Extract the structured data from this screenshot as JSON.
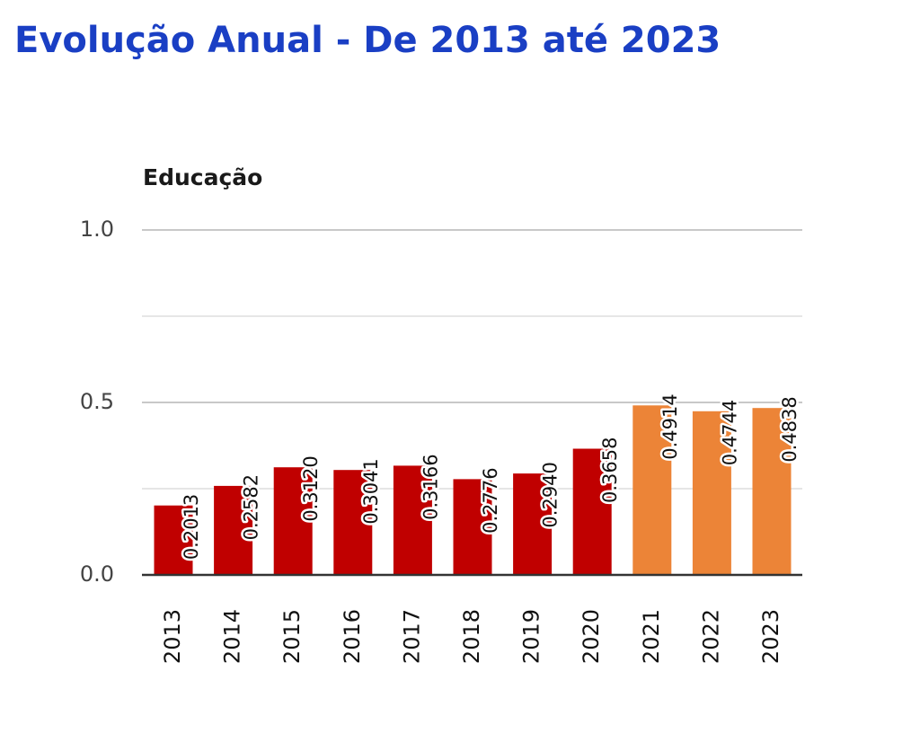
{
  "title": "Evolução Anual - De 2013 até 2023",
  "colors": {
    "title": "#1a3fc4",
    "bar_primary": "#c00000",
    "bar_highlight": "#ec8437",
    "grid": "#d6d6d6",
    "axis": "#333333"
  },
  "chart_data": {
    "type": "bar",
    "title": "Educação",
    "xlabel": "",
    "ylabel": "",
    "categories": [
      "2013",
      "2014",
      "2015",
      "2016",
      "2017",
      "2018",
      "2019",
      "2020",
      "2021",
      "2022",
      "2023"
    ],
    "values": [
      0.2013,
      0.2582,
      0.312,
      0.3041,
      0.3166,
      0.2776,
      0.294,
      0.3658,
      0.4914,
      0.4744,
      0.4838
    ],
    "labels": [
      "0.2013",
      "0.2582",
      "0.3120",
      "0.3041",
      "0.3166",
      "0.2776",
      "0.2940",
      "0.3658",
      "0.4914",
      "0.4744",
      "0.4838"
    ],
    "highlighted_categories": [
      "2021",
      "2022",
      "2023"
    ],
    "ylim": [
      0,
      1.0
    ],
    "yticks": [
      0.0,
      0.5,
      1.0
    ],
    "ytick_labels": [
      "0.0",
      "0.5",
      "1.0"
    ],
    "grid": true,
    "legend": "none"
  }
}
